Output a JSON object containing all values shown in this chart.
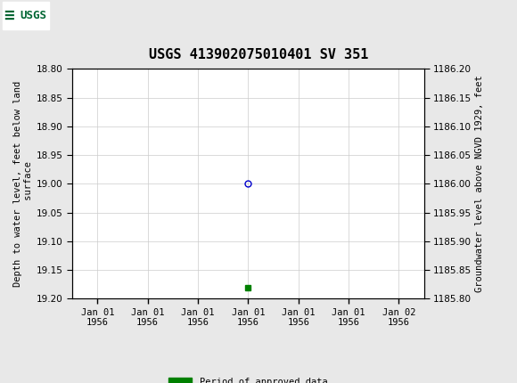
{
  "title": "USGS 413902075010401 SV 351",
  "ylabel_left": "Depth to water level, feet below land\n surface",
  "ylabel_right": "Groundwater level above NGVD 1929, feet",
  "ylim_left": [
    18.8,
    19.2
  ],
  "ylim_right": [
    1185.8,
    1186.2
  ],
  "yticks_left": [
    18.8,
    18.85,
    18.9,
    18.95,
    19.0,
    19.05,
    19.1,
    19.15,
    19.2
  ],
  "yticks_right": [
    1185.8,
    1185.85,
    1185.9,
    1185.95,
    1186.0,
    1186.05,
    1186.1,
    1186.15,
    1186.2
  ],
  "data_point_x": 3,
  "data_point_y": 19.0,
  "data_point_color": "#0000cc",
  "bar_x": 3,
  "bar_y": 19.18,
  "bar_color": "#008000",
  "header_bg_color": "#006633",
  "header_text_color": "#ffffff",
  "grid_color": "#cccccc",
  "axis_bg_color": "#ffffff",
  "bg_color": "#e8e8e8",
  "legend_label": "Period of approved data",
  "legend_color": "#008000",
  "title_fontsize": 11,
  "tick_fontsize": 7.5,
  "label_fontsize": 7.5,
  "x_ticks": [
    0,
    1,
    2,
    3,
    4,
    5,
    6
  ],
  "x_tick_labels": [
    "Jan 01\n1956",
    "Jan 01\n1956",
    "Jan 01\n1956",
    "Jan 01\n1956",
    "Jan 01\n1956",
    "Jan 01\n1956",
    "Jan 02\n1956"
  ],
  "xlim": [
    -0.5,
    6.5
  ]
}
